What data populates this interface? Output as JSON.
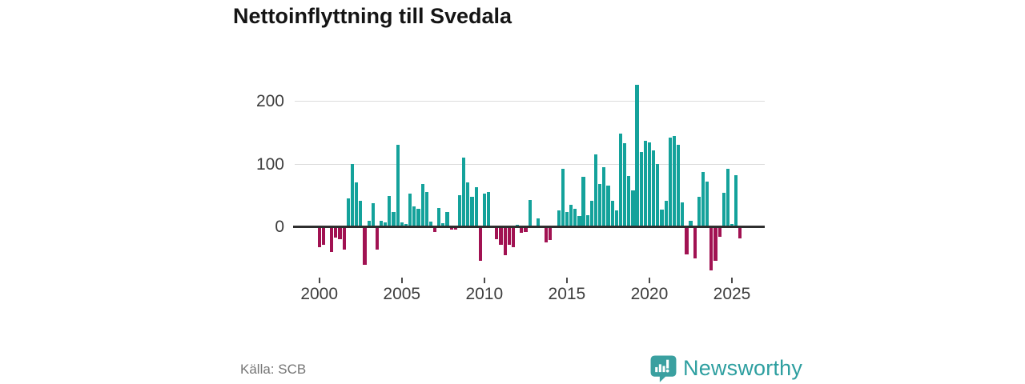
{
  "title": "Nettoinflyttning till Svedala",
  "source": "Källa: SCB",
  "logo": {
    "name": "Newsworthy"
  },
  "axes": {
    "y_labels": [
      "200",
      "100",
      "0"
    ],
    "x_labels": [
      "2000",
      "2005",
      "2010",
      "2015",
      "2020",
      "2025"
    ]
  },
  "chart_data": {
    "type": "bar",
    "title": "Nettoinflyttning till Svedala",
    "xlabel": "",
    "ylabel": "",
    "x_unit": "quarter",
    "start": "2000Q1",
    "end": "2025Q3",
    "frequency": "quarterly",
    "y_ticks": [
      0,
      100,
      200
    ],
    "x_ticks": [
      2000,
      2005,
      2010,
      2015,
      2020,
      2025
    ],
    "ylim": [
      -80,
      235
    ],
    "grid": "horizontal",
    "legend": "none",
    "colors": {
      "positive": "#14a29b",
      "negative": "#a11252"
    },
    "values": [
      -30,
      -27,
      0,
      -38,
      -15,
      -18,
      -34,
      45,
      100,
      71,
      42,
      -58,
      9,
      38,
      -34,
      10,
      7,
      49,
      23,
      130,
      7,
      4,
      53,
      32,
      29,
      68,
      56,
      8,
      -6,
      30,
      6,
      24,
      -3,
      -2,
      50,
      110,
      71,
      48,
      63,
      -52,
      53,
      55,
      0,
      -18,
      -27,
      -43,
      -27,
      -31,
      3,
      -8,
      -6,
      43,
      0,
      14,
      0,
      -23,
      -19,
      0,
      26,
      92,
      24,
      35,
      29,
      17,
      79,
      18,
      41,
      115,
      68,
      95,
      65,
      41,
      26,
      148,
      133,
      81,
      58,
      226,
      119,
      137,
      135,
      122,
      100,
      28,
      41,
      142,
      145,
      130,
      39,
      -42,
      10,
      -48,
      48,
      87,
      72,
      -67,
      -52,
      -14,
      54,
      92,
      5,
      82,
      -16
    ]
  }
}
